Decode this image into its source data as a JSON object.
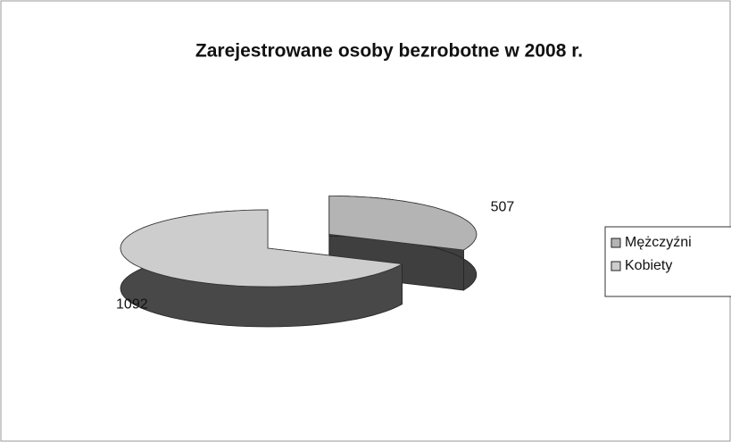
{
  "chart_data": {
    "type": "pie",
    "title": "Zarejestrowane osoby bezrobotne w 2008 r.",
    "categories": [
      "Mężczyźni",
      "Kobiety"
    ],
    "values": [
      507,
      1092
    ],
    "colors": [
      "#b4b4b4",
      "#cdcdcd"
    ]
  }
}
